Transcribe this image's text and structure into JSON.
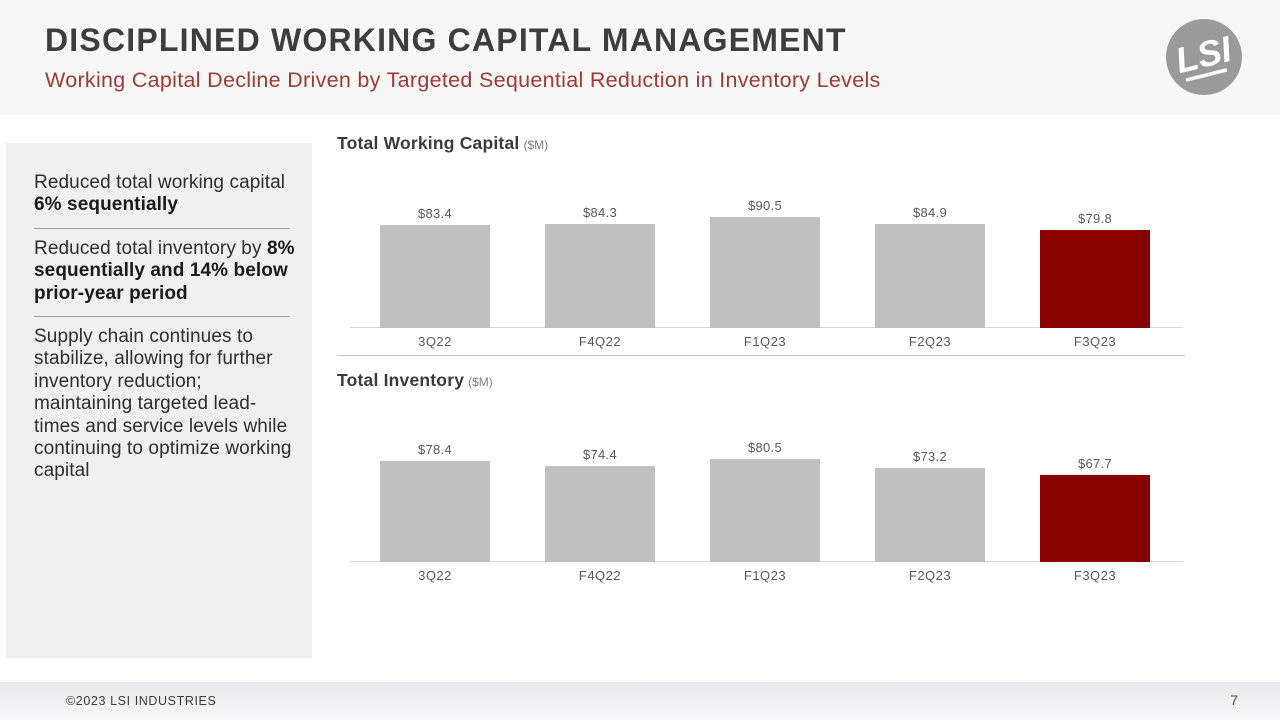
{
  "slide": {
    "title": "DISCIPLINED WORKING CAPITAL MANAGEMENT",
    "subtitle": "Working Capital Decline Driven by Targeted Sequential Reduction in Inventory Levels",
    "logo_text": "LSI",
    "footer": {
      "copyright": "©2023 LSI INDUSTRIES",
      "page_number": "7"
    }
  },
  "colors": {
    "accent_red": "#9e3a34",
    "bar_gray": "#c0c0c0",
    "bar_red": "#870000",
    "header_bg": "#f7f7f7",
    "sidebar_bg": "#f0f0f0",
    "logo_gray": "#9a9a9a"
  },
  "sidebar": {
    "notes": [
      {
        "lead": "Reduced total working capital ",
        "emphasis": "6% sequentially"
      },
      {
        "lead": "Reduced total inventory by ",
        "emphasis": "8% sequentially and 14% below prior-year period"
      },
      {
        "lead": "Supply chain continues to stabilize, allowing for further inventory reduction; maintaining targeted lead-times and service levels while continuing to optimize working capital",
        "emphasis": ""
      }
    ]
  },
  "chart_data": [
    {
      "type": "bar",
      "title": "Total Working Capital",
      "units_label": "($M)",
      "categories": [
        "3Q22",
        "F4Q22",
        "F1Q23",
        "F2Q23",
        "F3Q23"
      ],
      "values": [
        83.4,
        84.3,
        90.5,
        84.9,
        79.8
      ],
      "value_labels": [
        "$83.4",
        "$84.3",
        "$90.5",
        "$84.9",
        "$79.8"
      ],
      "highlight_index": 4,
      "bar_color": "#c0c0c0",
      "highlight_color": "#870000",
      "grid": false,
      "legend": false
    },
    {
      "type": "bar",
      "title": "Total Inventory",
      "units_label": "($M)",
      "categories": [
        "3Q22",
        "F4Q22",
        "F1Q23",
        "F2Q23",
        "F3Q23"
      ],
      "values": [
        78.4,
        74.4,
        80.5,
        73.2,
        67.7
      ],
      "value_labels": [
        "$78.4",
        "$74.4",
        "$80.5",
        "$73.2",
        "$67.7"
      ],
      "highlight_index": 4,
      "bar_color": "#c0c0c0",
      "highlight_color": "#870000",
      "grid": false,
      "legend": false
    }
  ]
}
